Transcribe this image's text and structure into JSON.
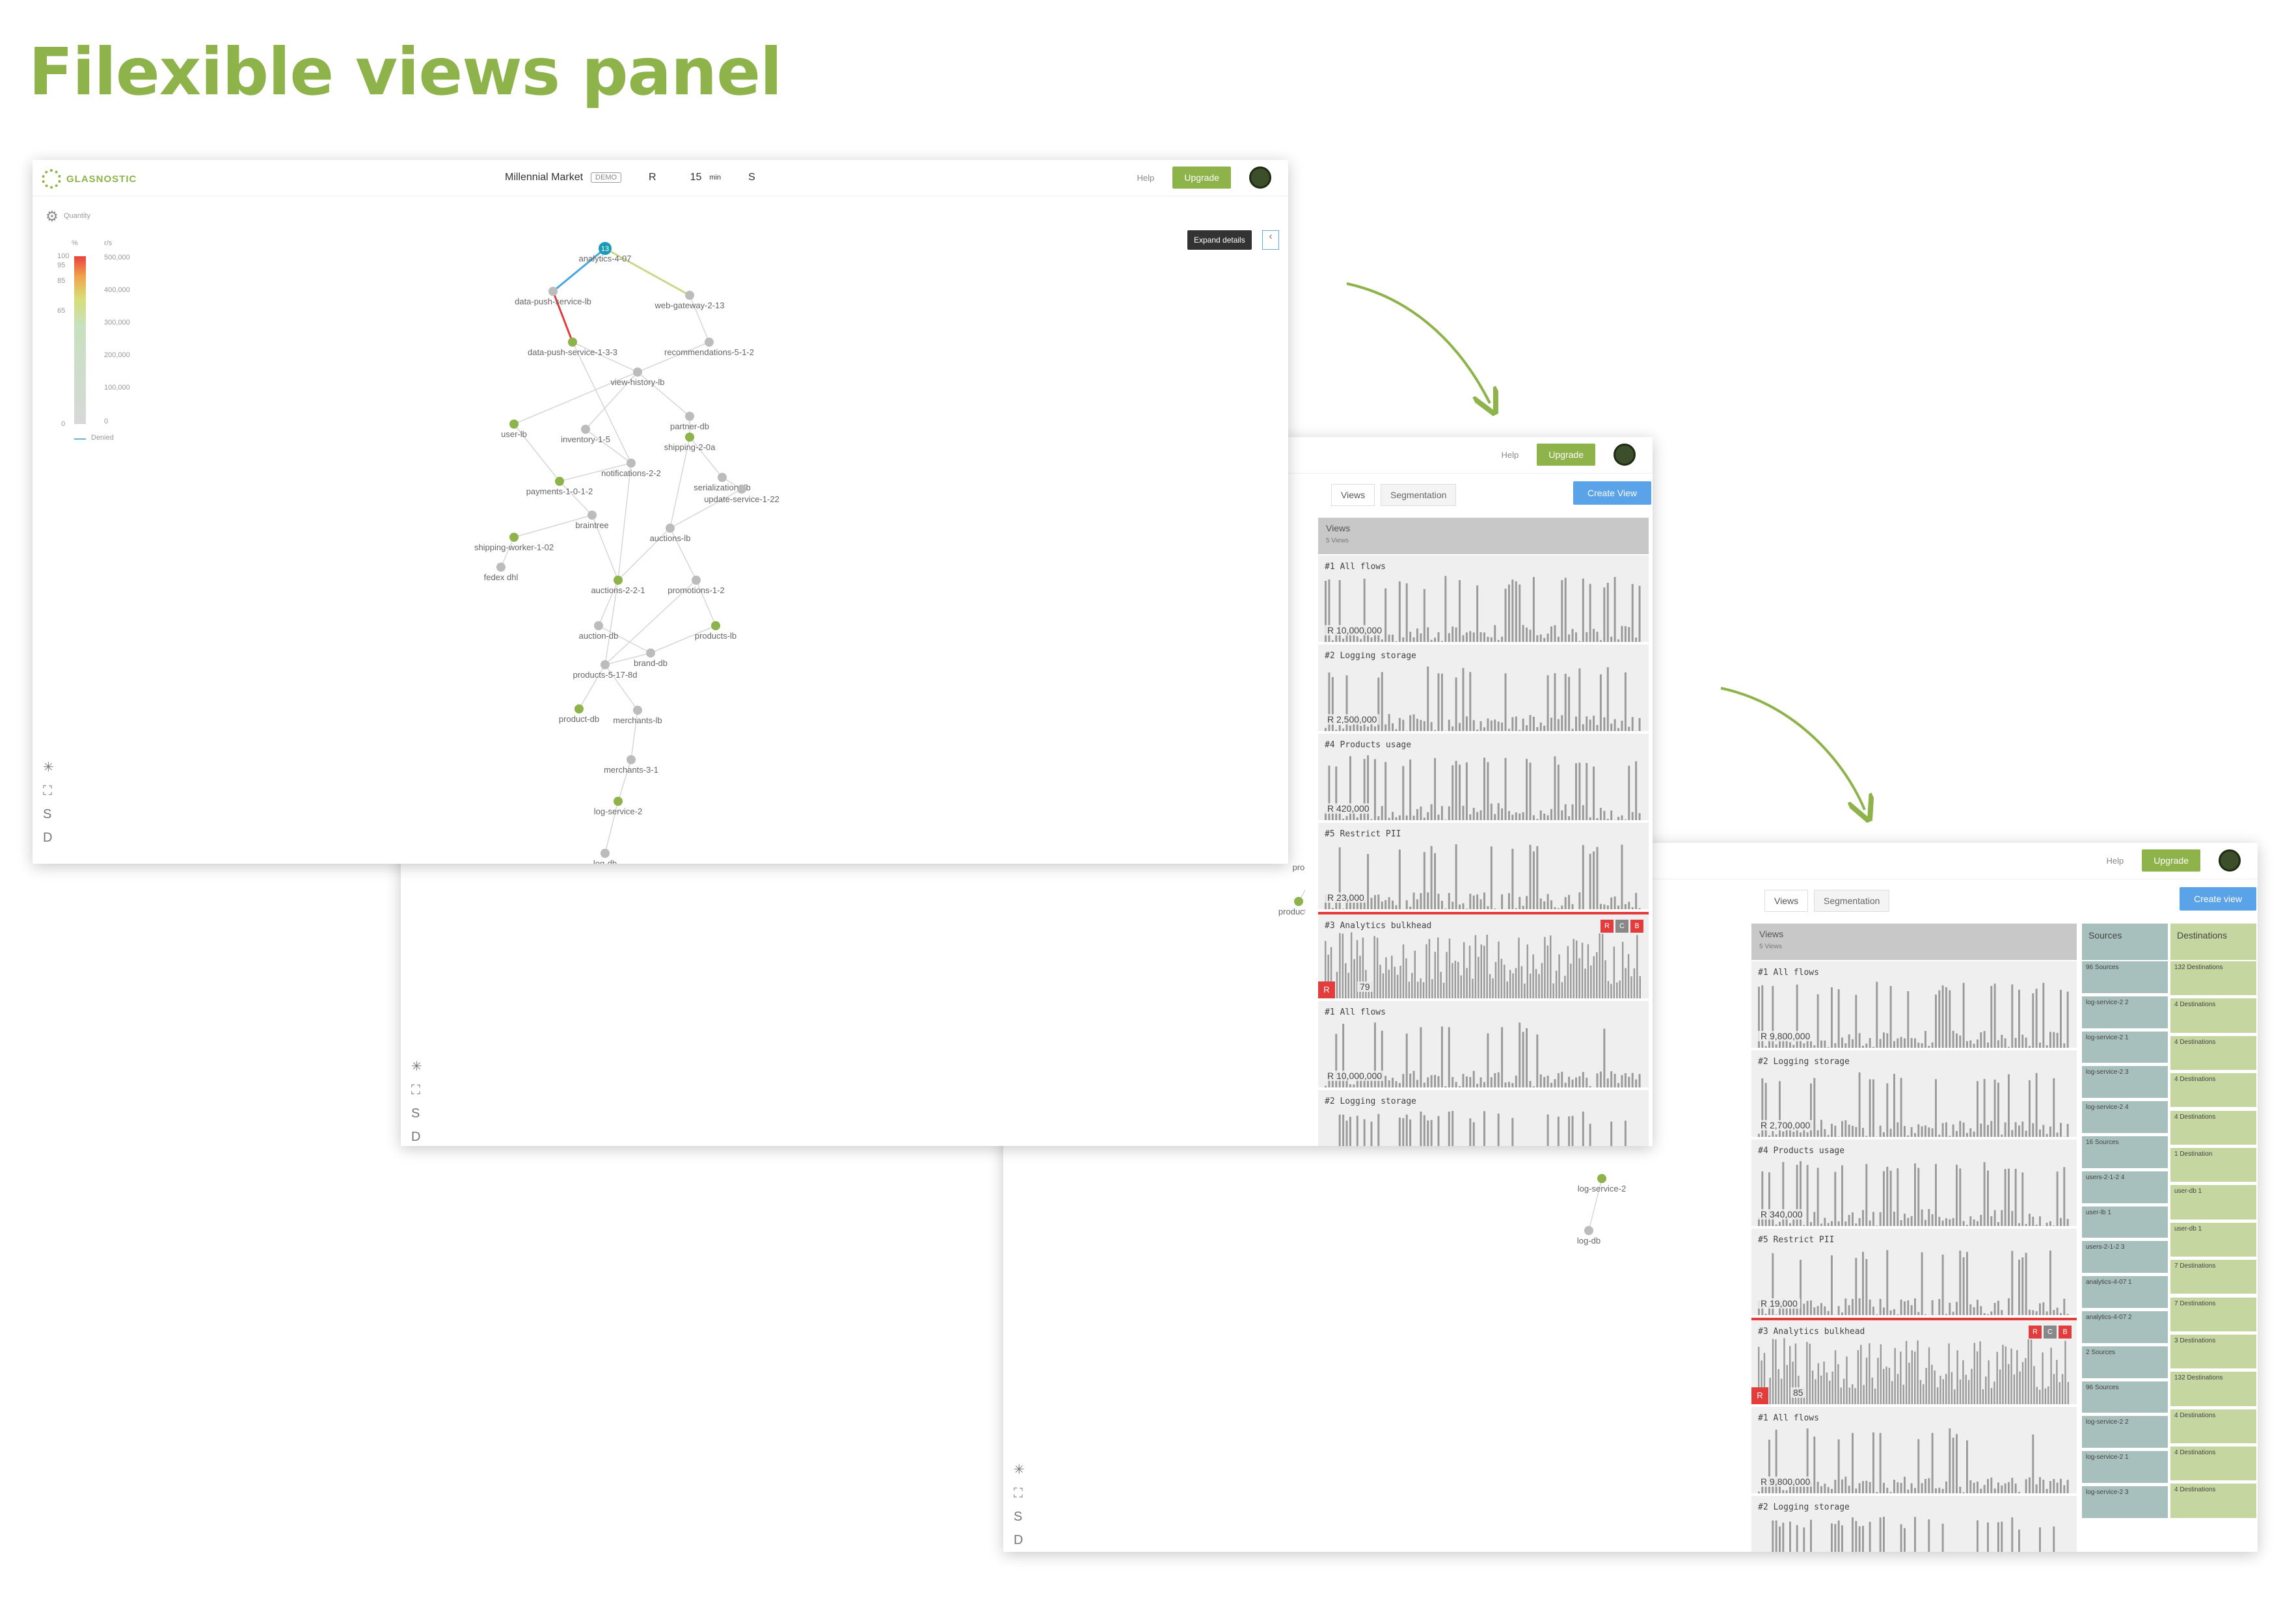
{
  "headline": "Filexible views panel",
  "app": {
    "logo_text": "GLASNOSTIC",
    "workspace": "Millennial Market",
    "workspace_badge": "DEMO",
    "metric": "R",
    "time_value": "15",
    "time_unit": "min",
    "signal": "S",
    "help": "Help",
    "upgrade": "Upgrade"
  },
  "legend": {
    "title": "Quantity",
    "percent_header": "%",
    "rps_header": "r/s",
    "percent_ticks": [
      "100",
      "95",
      "85",
      "65",
      "0"
    ],
    "rps_ticks": [
      "500,000",
      "400,000",
      "300,000",
      "200,000",
      "100,000",
      "0"
    ],
    "denied_label": "Denied"
  },
  "tooltip": "Expand details",
  "left_tools": [
    {
      "icon": "snowflake-icon",
      "glyph": "✳"
    },
    {
      "icon": "fit-view-icon",
      "glyph": "⛶"
    },
    {
      "icon": "s-key-icon",
      "glyph": "S"
    },
    {
      "icon": "d-key-icon",
      "glyph": "D"
    }
  ],
  "graph_nodes": [
    {
      "label": "analytics-4-07",
      "badge": "13"
    },
    {
      "label": "data-push-service-lb"
    },
    {
      "label": "web-gateway-2-13"
    },
    {
      "label": "data-push-service-1-3-3"
    },
    {
      "label": "recommendations-5-1-2"
    },
    {
      "label": "view-history-lb"
    },
    {
      "label": "user-lb"
    },
    {
      "label": "partner-db"
    },
    {
      "label": "inventory-1-5"
    },
    {
      "label": "shipping-2-0a"
    },
    {
      "label": "notifications-2-2"
    },
    {
      "label": "serialization-db"
    },
    {
      "label": "payments-1-0-1-2"
    },
    {
      "label": "update-service-1-22"
    },
    {
      "label": "braintree"
    },
    {
      "label": "shipping-worker-1-02"
    },
    {
      "label": "auctions-lb"
    },
    {
      "label": "fedex dhl"
    },
    {
      "label": "auctions-2-2-1"
    },
    {
      "label": "promotions-1-2"
    },
    {
      "label": "auction-db"
    },
    {
      "label": "products-lb"
    },
    {
      "label": "brand-db"
    },
    {
      "label": "products-5-17-8d"
    },
    {
      "label": "product-db"
    },
    {
      "label": "merchants-lb"
    },
    {
      "label": "merchants-3-1"
    },
    {
      "label": "log-service-2"
    },
    {
      "label": "log-db"
    }
  ],
  "views_panel": {
    "tab_views": "Views",
    "tab_segmentation": "Segmentation",
    "create_view_a": "Create View",
    "create_view_b": "Create view",
    "header": "Views",
    "count": "5 Views",
    "sources": "Sources",
    "destinations": "Destinations",
    "cards_a": [
      {
        "title": "#1 All flows",
        "value": "R  10,000,000"
      },
      {
        "title": "#2 Logging storage",
        "value": "R  2,500,000"
      },
      {
        "title": "#4 Products usage",
        "value": "R  420,000"
      },
      {
        "title": "#5 Restrict PII",
        "value": "R  23,000"
      },
      {
        "title": "#3 Analytics bulkhead",
        "value": "79",
        "badges": [
          "R",
          "C",
          "B"
        ],
        "alert": "R"
      },
      {
        "title": "#1 All flows",
        "value": "R  10,000,000"
      },
      {
        "title": "#2 Logging storage",
        "value": ""
      }
    ],
    "cards_b": [
      {
        "title": "#1 All flows",
        "value": "R  9,800,000"
      },
      {
        "title": "#2 Logging storage",
        "value": "R  2,700,000"
      },
      {
        "title": "#4 Products usage",
        "value": "R  340,000"
      },
      {
        "title": "#5 Restrict PII",
        "value": "R  19,000"
      },
      {
        "title": "#3 Analytics bulkhead",
        "value": "85",
        "badges": [
          "R",
          "C",
          "B"
        ],
        "alert": "R"
      },
      {
        "title": "#1 All flows",
        "value": "R  9,800,000"
      },
      {
        "title": "#2 Logging storage",
        "value": ""
      }
    ],
    "src_cells": [
      "96 Sources",
      "log-service-2 2",
      "log-service-2 1",
      "log-service-2 3",
      "log-service-2 4",
      "16 Sources",
      "users-2-1-2 4",
      "user-lb 1",
      "users-2-1-2 3",
      "analytics-4-07 1",
      "analytics-4-07 2",
      "2 Sources",
      "96 Sources",
      "log-service-2 2",
      "log-service-2 1",
      "log-service-2 3"
    ],
    "dst_cells": [
      "132 Destinations",
      "4 Destinations",
      "4 Destinations",
      "4 Destinations",
      "4 Destinations",
      "1 Destination",
      "user-db 1",
      "user-db 1",
      "7 Destinations",
      "7 Destinations",
      "3 Destinations",
      "132 Destinations",
      "4 Destinations",
      "4 Destinations",
      "4 Destinations"
    ]
  },
  "colors": {
    "brand": "#8db34a",
    "accent_blue": "#5aa3e8",
    "alert_red": "#e23c3c",
    "node_teal": "#1a9bb5"
  }
}
